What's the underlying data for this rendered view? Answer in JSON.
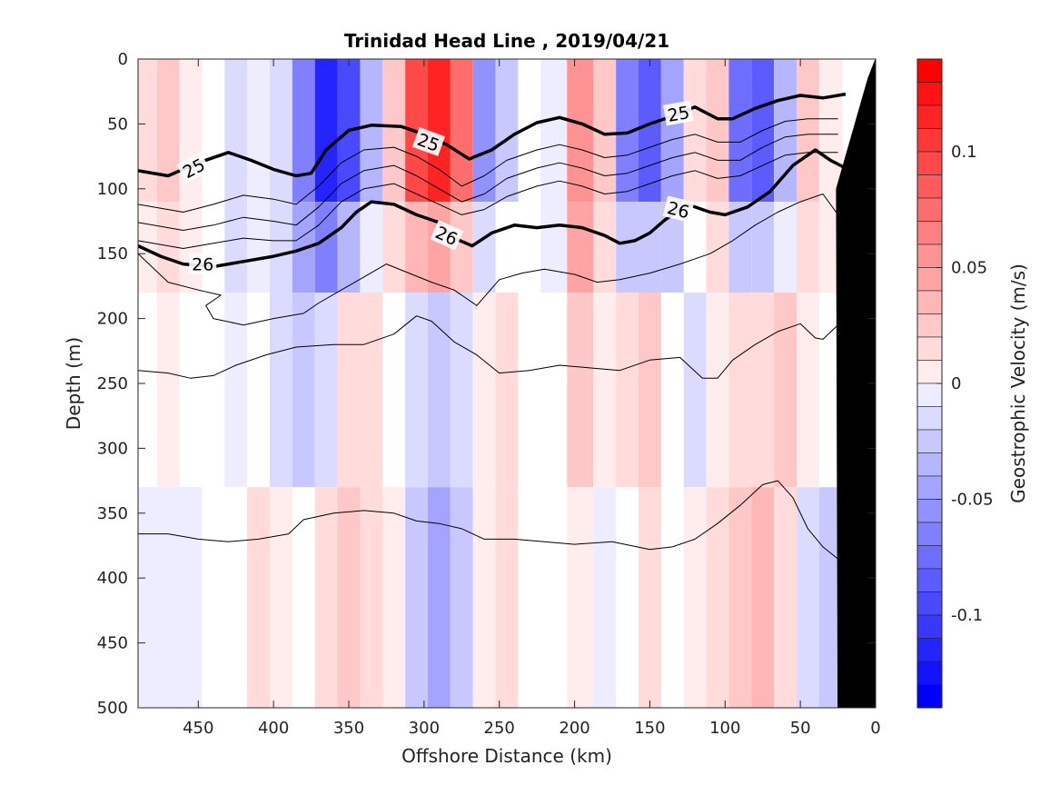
{
  "chart_data": {
    "type": "heatmap",
    "title": "Trinidad Head Line , 2019/04/21",
    "xlabel": "Offshore Distance (km)",
    "ylabel": "Depth (m)",
    "colorbar_label": "Geostrophic Velocity (m/s)",
    "xlim": [
      490,
      0
    ],
    "ylim": [
      0,
      500
    ],
    "x_ticks": [
      450,
      400,
      350,
      300,
      250,
      200,
      150,
      100,
      50,
      0
    ],
    "y_ticks": [
      0,
      50,
      100,
      150,
      200,
      250,
      300,
      350,
      400,
      450,
      500
    ],
    "colorbar_range": [
      -0.14,
      0.14
    ],
    "colorbar_ticks": [
      0.1,
      0.05,
      0,
      -0.05,
      -0.1
    ],
    "colorbar_tick_labels": [
      "0.1",
      "0.05",
      "0",
      "-0.05",
      "-0.1"
    ],
    "colormap": {
      "positive": "#ff0000",
      "negative": "#0000ff",
      "zero": "#ffffff"
    },
    "velocity_columns": [
      {
        "x": 485,
        "top": 0.02,
        "mid": 0.0,
        "deep": -0.01
      },
      {
        "x": 470,
        "top": 0.03,
        "mid": 0.005,
        "deep": -0.01
      },
      {
        "x": 455,
        "top": 0.01,
        "mid": 0.0,
        "deep": -0.005
      },
      {
        "x": 440,
        "top": 0.0,
        "mid": 0.0,
        "deep": 0.0
      },
      {
        "x": 425,
        "top": -0.02,
        "mid": -0.01,
        "deep": 0.0
      },
      {
        "x": 410,
        "top": -0.01,
        "mid": 0.0,
        "deep": 0.015
      },
      {
        "x": 395,
        "top": -0.02,
        "mid": -0.02,
        "deep": 0.01
      },
      {
        "x": 380,
        "top": -0.07,
        "mid": -0.03,
        "deep": 0.0
      },
      {
        "x": 365,
        "top": -0.12,
        "mid": -0.02,
        "deep": 0.02
      },
      {
        "x": 350,
        "top": -0.1,
        "mid": 0.02,
        "deep": 0.03
      },
      {
        "x": 335,
        "top": -0.04,
        "mid": 0.015,
        "deep": 0.02
      },
      {
        "x": 320,
        "top": 0.03,
        "mid": 0.0,
        "deep": 0.01
      },
      {
        "x": 305,
        "top": 0.1,
        "mid": -0.02,
        "deep": -0.03
      },
      {
        "x": 290,
        "top": 0.12,
        "mid": -0.03,
        "deep": -0.05
      },
      {
        "x": 275,
        "top": 0.08,
        "mid": -0.02,
        "deep": -0.03
      },
      {
        "x": 260,
        "top": -0.06,
        "mid": 0.01,
        "deep": 0.01
      },
      {
        "x": 245,
        "top": -0.03,
        "mid": 0.02,
        "deep": 0.02
      },
      {
        "x": 230,
        "top": 0.0,
        "mid": 0.0,
        "deep": 0.0
      },
      {
        "x": 215,
        "top": -0.01,
        "mid": 0.0,
        "deep": 0.0
      },
      {
        "x": 195,
        "top": 0.06,
        "mid": 0.03,
        "deep": 0.01
      },
      {
        "x": 180,
        "top": 0.03,
        "mid": 0.01,
        "deep": -0.01
      },
      {
        "x": 165,
        "top": -0.07,
        "mid": 0.02,
        "deep": 0.0
      },
      {
        "x": 150,
        "top": -0.09,
        "mid": 0.03,
        "deep": 0.015
      },
      {
        "x": 135,
        "top": -0.05,
        "mid": 0.0,
        "deep": 0.0
      },
      {
        "x": 120,
        "top": 0.02,
        "mid": -0.02,
        "deep": 0.01
      },
      {
        "x": 105,
        "top": 0.03,
        "mid": 0.01,
        "deep": 0.02
      },
      {
        "x": 90,
        "top": -0.08,
        "mid": 0.02,
        "deep": 0.03
      },
      {
        "x": 75,
        "top": -0.09,
        "mid": 0.02,
        "deep": 0.04
      },
      {
        "x": 60,
        "top": -0.04,
        "mid": 0.03,
        "deep": 0.02
      },
      {
        "x": 45,
        "top": 0.03,
        "mid": 0.01,
        "deep": -0.02
      },
      {
        "x": 30,
        "top": 0.01,
        "mid": 0.0,
        "deep": -0.03
      }
    ],
    "density_contours": [
      {
        "label": "25",
        "bold": true,
        "points": [
          [
            490,
            86
          ],
          [
            470,
            90
          ],
          [
            450,
            80
          ],
          [
            430,
            72
          ],
          [
            415,
            78
          ],
          [
            400,
            85
          ],
          [
            385,
            90
          ],
          [
            375,
            88
          ],
          [
            365,
            70
          ],
          [
            350,
            55
          ],
          [
            335,
            51
          ],
          [
            315,
            52
          ],
          [
            300,
            58
          ],
          [
            285,
            66
          ],
          [
            270,
            77
          ],
          [
            255,
            70
          ],
          [
            240,
            58
          ],
          [
            225,
            49
          ],
          [
            210,
            45
          ],
          [
            195,
            50
          ],
          [
            180,
            58
          ],
          [
            165,
            57
          ],
          [
            150,
            50
          ],
          [
            135,
            44
          ],
          [
            120,
            37
          ],
          [
            105,
            46
          ],
          [
            95,
            46
          ],
          [
            80,
            38
          ],
          [
            65,
            32
          ],
          [
            50,
            28
          ],
          [
            35,
            30
          ],
          [
            20,
            27
          ]
        ]
      },
      {
        "points": [
          [
            490,
            112
          ],
          [
            460,
            118
          ],
          [
            440,
            112
          ],
          [
            420,
            105
          ],
          [
            400,
            108
          ],
          [
            385,
            112
          ],
          [
            370,
            98
          ],
          [
            355,
            80
          ],
          [
            340,
            70
          ],
          [
            320,
            68
          ],
          [
            305,
            75
          ],
          [
            290,
            85
          ],
          [
            275,
            98
          ],
          [
            260,
            90
          ],
          [
            245,
            78
          ],
          [
            225,
            70
          ],
          [
            210,
            66
          ],
          [
            195,
            70
          ],
          [
            180,
            76
          ],
          [
            165,
            74
          ],
          [
            150,
            68
          ],
          [
            135,
            62
          ],
          [
            120,
            58
          ],
          [
            105,
            64
          ],
          [
            90,
            64
          ],
          [
            75,
            55
          ],
          [
            60,
            48
          ],
          [
            45,
            46
          ],
          [
            25,
            46
          ]
        ]
      },
      {
        "points": [
          [
            490,
            126
          ],
          [
            460,
            132
          ],
          [
            440,
            128
          ],
          [
            420,
            122
          ],
          [
            400,
            125
          ],
          [
            385,
            128
          ],
          [
            370,
            114
          ],
          [
            355,
            96
          ],
          [
            340,
            86
          ],
          [
            320,
            82
          ],
          [
            305,
            90
          ],
          [
            290,
            100
          ],
          [
            275,
            110
          ],
          [
            260,
            104
          ],
          [
            245,
            92
          ],
          [
            225,
            84
          ],
          [
            210,
            80
          ],
          [
            195,
            84
          ],
          [
            180,
            90
          ],
          [
            165,
            88
          ],
          [
            150,
            82
          ],
          [
            135,
            76
          ],
          [
            120,
            72
          ],
          [
            105,
            78
          ],
          [
            90,
            78
          ],
          [
            75,
            68
          ],
          [
            60,
            60
          ],
          [
            45,
            58
          ],
          [
            25,
            58
          ]
        ]
      },
      {
        "points": [
          [
            490,
            140
          ],
          [
            460,
            146
          ],
          [
            440,
            142
          ],
          [
            420,
            138
          ],
          [
            400,
            140
          ],
          [
            385,
            140
          ],
          [
            370,
            128
          ],
          [
            355,
            110
          ],
          [
            340,
            100
          ],
          [
            320,
            96
          ],
          [
            305,
            104
          ],
          [
            290,
            112
          ],
          [
            275,
            120
          ],
          [
            260,
            116
          ],
          [
            245,
            106
          ],
          [
            225,
            98
          ],
          [
            210,
            94
          ],
          [
            195,
            98
          ],
          [
            180,
            104
          ],
          [
            165,
            102
          ],
          [
            150,
            96
          ],
          [
            135,
            90
          ],
          [
            120,
            86
          ],
          [
            105,
            92
          ],
          [
            90,
            90
          ],
          [
            75,
            82
          ],
          [
            60,
            74
          ],
          [
            45,
            72
          ],
          [
            25,
            72
          ]
        ]
      },
      {
        "label": "26",
        "bold": true,
        "points": [
          [
            490,
            144
          ],
          [
            475,
            152
          ],
          [
            460,
            158
          ],
          [
            440,
            160
          ],
          [
            420,
            156
          ],
          [
            400,
            152
          ],
          [
            385,
            148
          ],
          [
            370,
            142
          ],
          [
            355,
            130
          ],
          [
            345,
            118
          ],
          [
            335,
            110
          ],
          [
            320,
            112
          ],
          [
            305,
            120
          ],
          [
            290,
            126
          ],
          [
            280,
            138
          ],
          [
            268,
            144
          ],
          [
            255,
            134
          ],
          [
            240,
            128
          ],
          [
            225,
            130
          ],
          [
            210,
            128
          ],
          [
            195,
            130
          ],
          [
            180,
            136
          ],
          [
            170,
            142
          ],
          [
            160,
            140
          ],
          [
            150,
            134
          ],
          [
            140,
            124
          ],
          [
            125,
            112
          ],
          [
            110,
            118
          ],
          [
            100,
            120
          ],
          [
            85,
            114
          ],
          [
            70,
            102
          ],
          [
            55,
            82
          ],
          [
            40,
            70
          ],
          [
            30,
            78
          ],
          [
            20,
            84
          ]
        ]
      },
      {
        "points": [
          [
            490,
            150
          ],
          [
            470,
            172
          ],
          [
            450,
            178
          ],
          [
            435,
            182
          ],
          [
            445,
            190
          ],
          [
            440,
            200
          ],
          [
            420,
            205
          ],
          [
            400,
            200
          ],
          [
            380,
            196
          ],
          [
            370,
            188
          ],
          [
            355,
            178
          ],
          [
            340,
            168
          ],
          [
            325,
            158
          ],
          [
            310,
            165
          ],
          [
            295,
            172
          ],
          [
            280,
            178
          ],
          [
            265,
            190
          ],
          [
            250,
            170
          ],
          [
            235,
            165
          ],
          [
            220,
            162
          ],
          [
            200,
            166
          ],
          [
            185,
            172
          ],
          [
            170,
            170
          ],
          [
            150,
            165
          ],
          [
            130,
            158
          ],
          [
            110,
            150
          ],
          [
            95,
            140
          ],
          [
            80,
            128
          ],
          [
            65,
            118
          ],
          [
            50,
            110
          ],
          [
            35,
            104
          ],
          [
            20,
            128
          ]
        ]
      },
      {
        "points": [
          [
            490,
            240
          ],
          [
            470,
            242
          ],
          [
            455,
            246
          ],
          [
            440,
            244
          ],
          [
            425,
            236
          ],
          [
            405,
            228
          ],
          [
            385,
            222
          ],
          [
            360,
            220
          ],
          [
            340,
            220
          ],
          [
            320,
            212
          ],
          [
            305,
            198
          ],
          [
            295,
            202
          ],
          [
            280,
            218
          ],
          [
            265,
            228
          ],
          [
            250,
            242
          ],
          [
            230,
            240
          ],
          [
            210,
            236
          ],
          [
            190,
            238
          ],
          [
            170,
            240
          ],
          [
            150,
            232
          ],
          [
            130,
            230
          ],
          [
            115,
            246
          ],
          [
            105,
            246
          ],
          [
            95,
            232
          ],
          [
            80,
            220
          ],
          [
            65,
            210
          ],
          [
            50,
            204
          ],
          [
            40,
            215
          ],
          [
            35,
            216
          ],
          [
            25,
            205
          ]
        ]
      },
      {
        "points": [
          [
            490,
            366
          ],
          [
            470,
            366
          ],
          [
            450,
            370
          ],
          [
            430,
            372
          ],
          [
            410,
            370
          ],
          [
            390,
            366
          ],
          [
            380,
            355
          ],
          [
            360,
            350
          ],
          [
            340,
            348
          ],
          [
            320,
            350
          ],
          [
            305,
            356
          ],
          [
            290,
            358
          ],
          [
            275,
            362
          ],
          [
            260,
            370
          ],
          [
            240,
            370
          ],
          [
            220,
            372
          ],
          [
            200,
            374
          ],
          [
            175,
            372
          ],
          [
            150,
            378
          ],
          [
            135,
            376
          ],
          [
            120,
            370
          ],
          [
            105,
            358
          ],
          [
            90,
            344
          ],
          [
            75,
            328
          ],
          [
            65,
            325
          ],
          [
            55,
            338
          ],
          [
            45,
            362
          ],
          [
            35,
            376
          ],
          [
            20,
            390
          ]
        ]
      }
    ],
    "contour_labels": [
      {
        "text": "25",
        "x": 453,
        "y": 84,
        "angle": -28
      },
      {
        "text": "25",
        "x": 297,
        "y": 64,
        "angle": 20
      },
      {
        "text": "25",
        "x": 131,
        "y": 42,
        "angle": -10
      },
      {
        "text": "26",
        "x": 447,
        "y": 158,
        "angle": 0
      },
      {
        "text": "26",
        "x": 285,
        "y": 136,
        "angle": 24
      },
      {
        "text": "26",
        "x": 131,
        "y": 116,
        "angle": 14
      }
    ],
    "seafloor": {
      "points": [
        [
          0,
          0
        ],
        [
          0,
          500
        ],
        [
          25,
          500
        ],
        [
          26,
          100
        ],
        [
          5,
          15
        ]
      ]
    }
  }
}
